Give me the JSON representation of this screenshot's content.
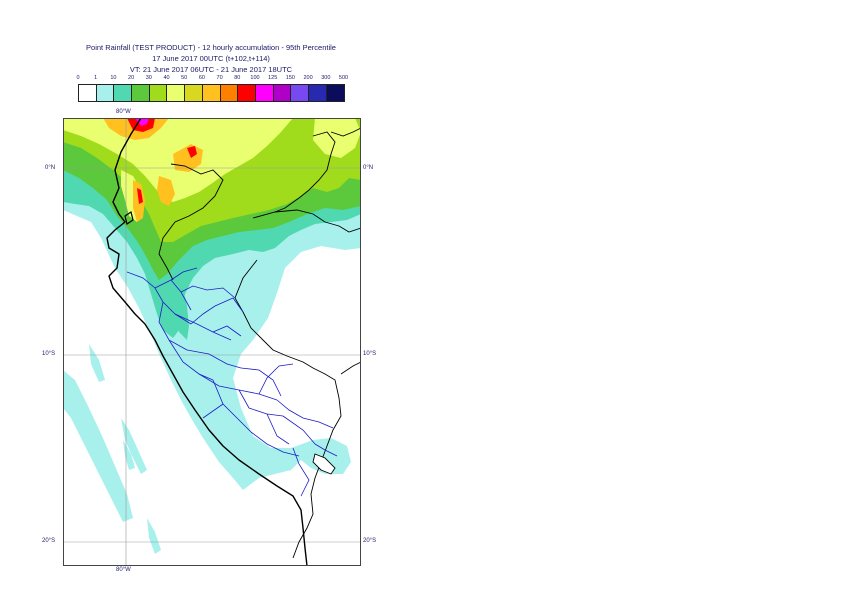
{
  "title": {
    "line1": "Point Rainfall (TEST PRODUCT) - 12 hourly accumulation - 95th Percentile",
    "line2": "17 June 2017 00UTC (t+102,t+114)",
    "line3": "VT: 21 June 2017 06UTC - 21 June 2017 18UTC"
  },
  "legend": {
    "thresholds": [
      "0",
      "1",
      "10",
      "20",
      "30",
      "40",
      "50",
      "60",
      "70",
      "80",
      "100",
      "125",
      "150",
      "200",
      "300",
      "500"
    ],
    "colors": [
      "#ffffff",
      "#a8f0ec",
      "#50d8b0",
      "#5cc83c",
      "#a0dc1c",
      "#eaff70",
      "#d8d820",
      "#ffc020",
      "#ff8000",
      "#ff0000",
      "#ff00ff",
      "#b000c8",
      "#7848f0",
      "#2828b0",
      "#0c0c5c"
    ]
  },
  "map": {
    "lon_labels": {
      "top": "80°W",
      "bottom": "80°W"
    },
    "lat_labels": {
      "eq_left": "0°N",
      "eq_right": "0°N",
      "s10_left": "10°S",
      "s10_right": "10°S",
      "s20_left": "20°S",
      "s20_right": "20°S"
    }
  }
}
